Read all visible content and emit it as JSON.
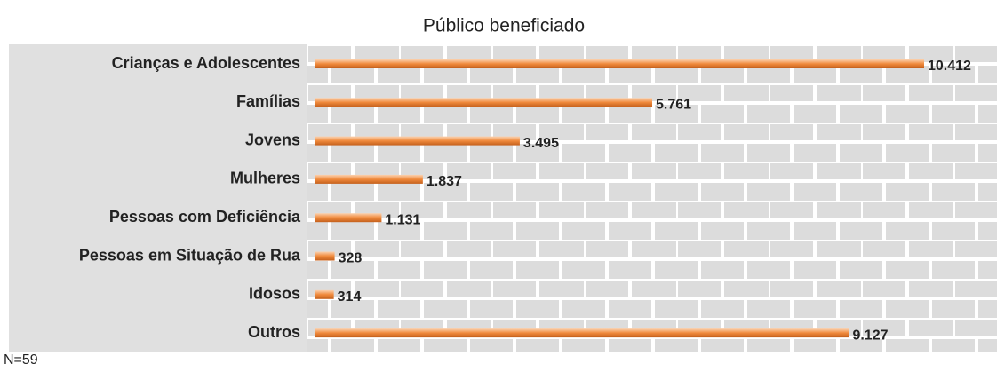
{
  "chart_data": {
    "type": "bar",
    "orientation": "horizontal",
    "title": "Público beneficiado",
    "categories": [
      "Crianças e Adolescentes",
      "Famílias",
      "Jovens",
      "Mulheres",
      "Pessoas com Deficiência",
      "Pessoas em Situação de Rua",
      "Idosos",
      "Outros"
    ],
    "values": [
      10412,
      5761,
      3495,
      1837,
      1131,
      328,
      314,
      9127
    ],
    "value_labels": [
      "10.412",
      "5.761",
      "3.495",
      "1.837",
      "1.131",
      "328",
      "314",
      "9.127"
    ],
    "color": "#f08a3c",
    "note": "N=59"
  }
}
